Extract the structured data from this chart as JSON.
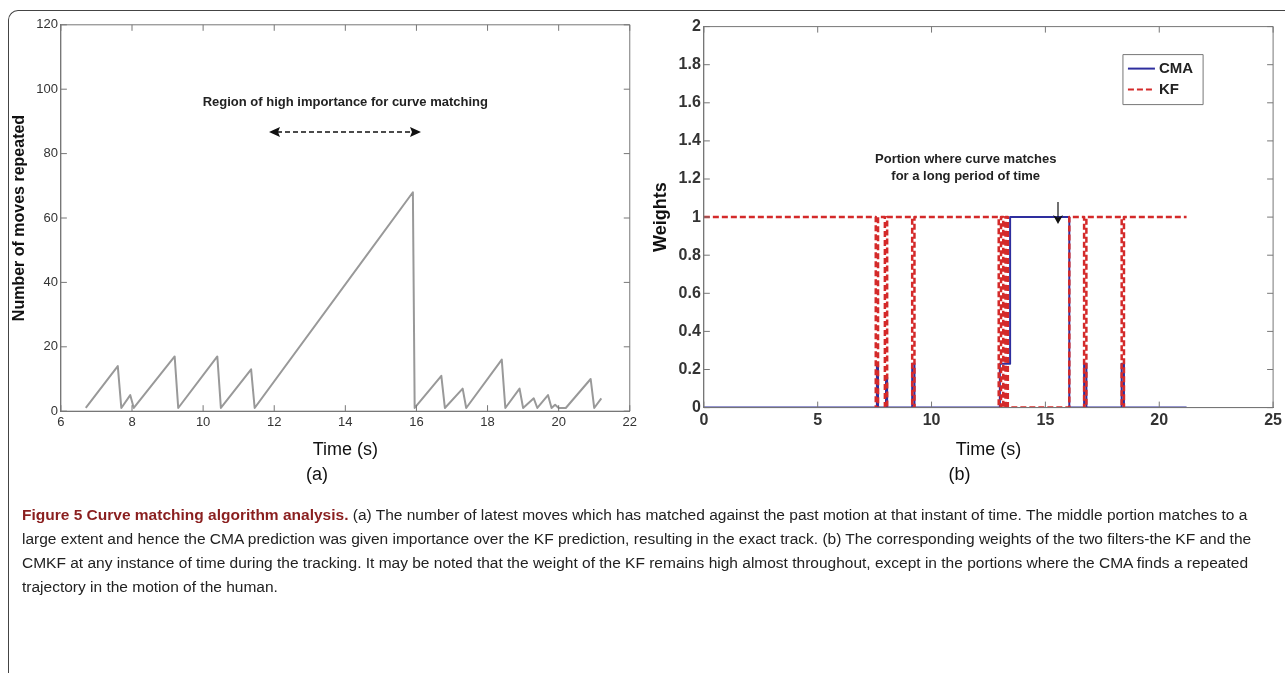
{
  "chart_data": [
    {
      "type": "line",
      "xlabel": "Time (s)",
      "subtitle": "(a)",
      "ylabel": "Number of moves repeated",
      "xlim": [
        6,
        22
      ],
      "xticks": [
        6,
        8,
        10,
        12,
        14,
        16,
        18,
        20,
        22
      ],
      "ylim": [
        0,
        120
      ],
      "yticks": [
        0,
        20,
        40,
        60,
        80,
        100,
        120
      ],
      "grid": false,
      "legend": false,
      "series": [
        {
          "color": "#999999",
          "x": [
            6.7,
            7.6,
            7.7,
            7.95,
            8.05,
            9.2,
            9.3,
            10.4,
            10.5,
            11.35,
            11.45,
            15.9,
            15.95,
            16.7,
            16.8,
            17.3,
            17.4,
            18.4,
            18.5,
            18.9,
            19.0,
            19.3,
            19.4,
            19.7,
            19.8,
            19.9,
            20.0,
            20.2,
            20.9,
            21.0,
            21.2
          ],
          "values": [
            1,
            14,
            1,
            5,
            1,
            17,
            1,
            17,
            1,
            13,
            1,
            68,
            1,
            11,
            1,
            7,
            1,
            16,
            1,
            7,
            1,
            4,
            1,
            5,
            1,
            2,
            1,
            1,
            10,
            1,
            4
          ]
        }
      ],
      "annotations": [
        "Region of high importance for curve matching"
      ]
    },
    {
      "type": "line",
      "xlabel": "Time (s)",
      "subtitle": "(b)",
      "ylabel": "Weights",
      "xlim": [
        0,
        25
      ],
      "xticks": [
        0,
        5,
        10,
        15,
        20,
        25
      ],
      "ylim": [
        0,
        2
      ],
      "yticks": [
        0,
        0.2,
        0.4,
        0.6,
        0.8,
        1,
        1.2,
        1.4,
        1.6,
        1.8,
        2
      ],
      "grid": false,
      "legend": "top right",
      "series": [
        {
          "name": "CMA",
          "color": "#2e2e9e",
          "line_style": "solid",
          "x": [
            0,
            7.55,
            7.6,
            7.6,
            7.65,
            7.65,
            8.0,
            8.0,
            8.05,
            8.05,
            9.15,
            9.15,
            9.25,
            9.25,
            13.0,
            13.0,
            13.45,
            13.45,
            16.05,
            16.05,
            16.7,
            16.7,
            16.8,
            16.8,
            18.35,
            18.35,
            18.45,
            18.45,
            21.2
          ],
          "values": [
            0,
            0,
            0,
            0.23,
            0.23,
            0,
            0,
            0.16,
            0.16,
            0,
            0,
            0.23,
            0.23,
            0,
            0,
            0.23,
            0.23,
            1,
            1,
            0,
            0,
            0.23,
            0.23,
            0,
            0,
            0.23,
            0.23,
            0,
            0
          ]
        },
        {
          "name": "KF",
          "color": "#d42a2a",
          "line_style": "dashed",
          "x": [
            0,
            7.55,
            7.55,
            7.65,
            7.65,
            7.95,
            7.95,
            8.05,
            8.05,
            9.15,
            9.15,
            9.25,
            9.25,
            12.95,
            12.95,
            13.05,
            13.05,
            13.15,
            13.15,
            13.25,
            13.25,
            13.35,
            13.35,
            16.05,
            16.05,
            16.7,
            16.7,
            16.8,
            16.8,
            18.35,
            18.35,
            18.45,
            18.45,
            21.2
          ],
          "values": [
            1,
            1,
            0,
            0,
            1,
            1,
            0,
            0,
            1,
            1,
            0,
            0,
            1,
            1,
            0,
            0,
            1,
            1,
            0,
            0,
            1,
            1,
            0,
            0,
            1,
            1,
            0,
            0,
            1,
            1,
            0,
            0,
            1,
            1
          ]
        }
      ],
      "annotations": [
        "Portion where curve matches\nfor a long period of time"
      ]
    },
    {
      "type": "other",
      "title": "Figure 5 Curve matching algorithm analysis.",
      "annotations": [
        "(a) The number of latest moves which has matched against the past motion at that instant of time. The middle portion matches to a large extent and hence the CMA prediction was given importance over the KF prediction, resulting in the exact track. (b) The corresponding weights of the two filters-the KF and the CMKF at any instance of time during the tracking. It may be noted that the weight of the KF remains high almost throughout, except in the portions where the CMA finds a repeated trajectory in the motion of the human."
      ]
    }
  ]
}
